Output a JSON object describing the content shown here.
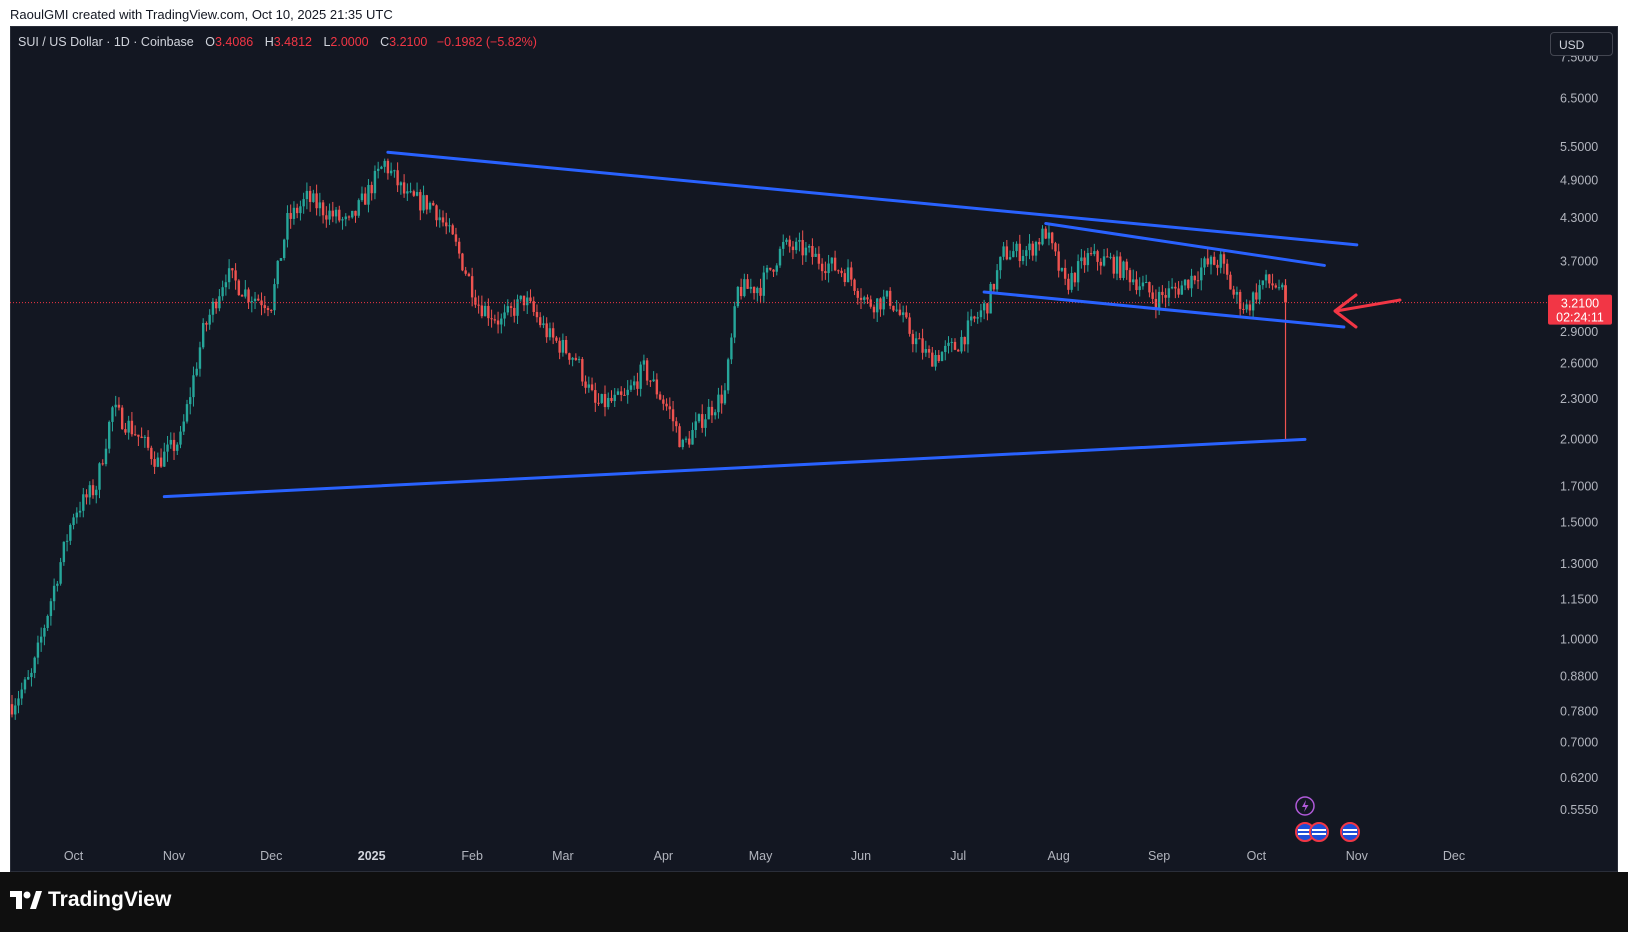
{
  "credit": "RaoulGMI created with TradingView.com, Oct 10, 2025 21:35 UTC",
  "legend": {
    "symbol": "SUI / US Dollar · 1D · Coinbase",
    "open_label": "O",
    "open": "3.4086",
    "high_label": "H",
    "high": "3.4812",
    "low_label": "L",
    "low": "2.0000",
    "close_label": "C",
    "close": "3.2100",
    "change": "−0.1982 (−5.82%)"
  },
  "currency_button": "USD",
  "price_tag": {
    "price": "3.2100",
    "countdown": "02:24:11"
  },
  "brand": "TradingView",
  "icons": [
    "lightning-icon",
    "us-flag-icon"
  ],
  "colors": {
    "background": "#131722",
    "up": "#26a69a",
    "down": "#ef5350",
    "trendline": "#2962ff",
    "arrow": "#f23645",
    "price_tag": "#f23645"
  },
  "chart_data": {
    "type": "candlestick",
    "scale": "log",
    "ylim": [
      0.5,
      8.3
    ],
    "y_ticks": [
      "7.5000",
      "6.5000",
      "5.5000",
      "4.9000",
      "4.3000",
      "3.7000",
      "2.9000",
      "2.6000",
      "2.3000",
      "2.0000",
      "1.7000",
      "1.5000",
      "1.3000",
      "1.1500",
      "1.0000",
      "0.8800",
      "0.7800",
      "0.7000",
      "0.6200",
      "0.5550"
    ],
    "x_ticks": [
      {
        "label": "Oct",
        "date": "2024-10-01"
      },
      {
        "label": "Nov",
        "date": "2024-11-01"
      },
      {
        "label": "Dec",
        "date": "2024-12-01"
      },
      {
        "label": "2025",
        "date": "2025-01-01"
      },
      {
        "label": "Feb",
        "date": "2025-02-01"
      },
      {
        "label": "Mar",
        "date": "2025-03-01"
      },
      {
        "label": "Apr",
        "date": "2025-04-01"
      },
      {
        "label": "May",
        "date": "2025-05-01"
      },
      {
        "label": "Jun",
        "date": "2025-06-01"
      },
      {
        "label": "Jul",
        "date": "2025-07-01"
      },
      {
        "label": "Aug",
        "date": "2025-08-01"
      },
      {
        "label": "Sep",
        "date": "2025-09-01"
      },
      {
        "label": "Oct",
        "date": "2025-10-01"
      },
      {
        "label": "Nov",
        "date": "2025-11-01"
      },
      {
        "label": "Dec",
        "date": "2025-12-01"
      }
    ],
    "date_range": [
      "2024-09-12",
      "2025-10-10"
    ],
    "close_path": [
      {
        "date": "2024-09-12",
        "price": 0.8
      },
      {
        "date": "2024-09-18",
        "price": 0.88
      },
      {
        "date": "2024-09-25",
        "price": 1.2
      },
      {
        "date": "2024-10-01",
        "price": 1.55
      },
      {
        "date": "2024-10-08",
        "price": 1.7
      },
      {
        "date": "2024-10-13",
        "price": 2.22
      },
      {
        "date": "2024-10-20",
        "price": 2.05
      },
      {
        "date": "2024-10-27",
        "price": 1.85
      },
      {
        "date": "2024-11-03",
        "price": 2.0
      },
      {
        "date": "2024-11-10",
        "price": 2.9
      },
      {
        "date": "2024-11-17",
        "price": 3.55
      },
      {
        "date": "2024-11-24",
        "price": 3.3
      },
      {
        "date": "2024-12-01",
        "price": 3.2
      },
      {
        "date": "2024-12-06",
        "price": 4.25
      },
      {
        "date": "2024-12-12",
        "price": 4.6
      },
      {
        "date": "2024-12-18",
        "price": 4.4
      },
      {
        "date": "2024-12-25",
        "price": 4.2
      },
      {
        "date": "2025-01-05",
        "price": 5.2
      },
      {
        "date": "2025-01-12",
        "price": 4.6
      },
      {
        "date": "2025-01-20",
        "price": 4.5
      },
      {
        "date": "2025-01-27",
        "price": 3.9
      },
      {
        "date": "2025-02-03",
        "price": 3.2
      },
      {
        "date": "2025-02-10",
        "price": 3.0
      },
      {
        "date": "2025-02-17",
        "price": 3.25
      },
      {
        "date": "2025-02-25",
        "price": 2.85
      },
      {
        "date": "2025-03-05",
        "price": 2.65
      },
      {
        "date": "2025-03-11",
        "price": 2.25
      },
      {
        "date": "2025-03-20",
        "price": 2.3
      },
      {
        "date": "2025-03-26",
        "price": 2.55
      },
      {
        "date": "2025-04-03",
        "price": 2.2
      },
      {
        "date": "2025-04-07",
        "price": 1.95
      },
      {
        "date": "2025-04-13",
        "price": 2.15
      },
      {
        "date": "2025-04-20",
        "price": 2.35
      },
      {
        "date": "2025-04-24",
        "price": 3.35
      },
      {
        "date": "2025-05-01",
        "price": 3.4
      },
      {
        "date": "2025-05-08",
        "price": 3.9
      },
      {
        "date": "2025-05-14",
        "price": 3.85
      },
      {
        "date": "2025-05-20",
        "price": 3.7
      },
      {
        "date": "2025-05-28",
        "price": 3.55
      },
      {
        "date": "2025-06-03",
        "price": 3.2
      },
      {
        "date": "2025-06-10",
        "price": 3.25
      },
      {
        "date": "2025-06-17",
        "price": 2.85
      },
      {
        "date": "2025-06-22",
        "price": 2.65
      },
      {
        "date": "2025-06-30",
        "price": 2.75
      },
      {
        "date": "2025-07-10",
        "price": 3.2
      },
      {
        "date": "2025-07-15",
        "price": 3.8
      },
      {
        "date": "2025-07-23",
        "price": 3.85
      },
      {
        "date": "2025-07-28",
        "price": 4.1
      },
      {
        "date": "2025-08-03",
        "price": 3.4
      },
      {
        "date": "2025-08-10",
        "price": 3.75
      },
      {
        "date": "2025-08-17",
        "price": 3.7
      },
      {
        "date": "2025-08-24",
        "price": 3.5
      },
      {
        "date": "2025-08-31",
        "price": 3.25
      },
      {
        "date": "2025-09-08",
        "price": 3.4
      },
      {
        "date": "2025-09-15",
        "price": 3.65
      },
      {
        "date": "2025-09-20",
        "price": 3.7
      },
      {
        "date": "2025-09-24",
        "price": 3.3
      },
      {
        "date": "2025-09-28",
        "price": 3.15
      },
      {
        "date": "2025-10-03",
        "price": 3.45
      },
      {
        "date": "2025-10-08",
        "price": 3.4
      },
      {
        "date": "2025-10-10",
        "price": 3.21
      }
    ],
    "last_candle": {
      "date": "2025-10-10",
      "open": 3.4086,
      "high": 3.4812,
      "low": 2.0,
      "close": 3.21
    },
    "trendlines": [
      {
        "from": {
          "date": "2025-01-06",
          "price": 5.4
        },
        "to": {
          "date": "2025-11-01",
          "price": 3.92
        }
      },
      {
        "from": {
          "date": "2024-10-29",
          "price": 1.64
        },
        "to": {
          "date": "2025-10-16",
          "price": 2.0
        }
      },
      {
        "from": {
          "date": "2025-07-28",
          "price": 4.22
        },
        "to": {
          "date": "2025-10-22",
          "price": 3.65
        }
      },
      {
        "from": {
          "date": "2025-07-09",
          "price": 3.33
        },
        "to": {
          "date": "2025-10-28",
          "price": 2.95
        }
      }
    ],
    "current_price": 3.21
  }
}
